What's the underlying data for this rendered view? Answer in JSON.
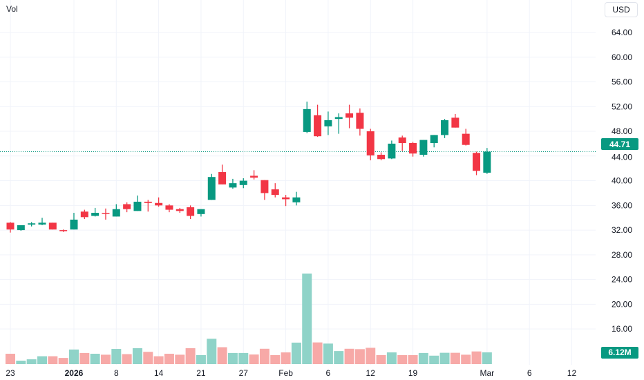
{
  "header": {
    "volume_label": "Vol",
    "currency_button": "USD"
  },
  "badges": {
    "last_price": "44.71",
    "last_volume": "6.12M"
  },
  "colors": {
    "up": "#089981",
    "down": "#f23645",
    "vol_up": "#8fd3c8",
    "vol_down": "#f7a9a7",
    "grid": "#f0f3fa",
    "text": "#131722"
  },
  "chart_data": {
    "type": "candlestick",
    "title": "",
    "currency": "USD",
    "last_price": 44.71,
    "ylim": [
      14,
      66
    ],
    "y_ticks": [
      "64.00",
      "60.00",
      "56.00",
      "52.00",
      "48.00",
      "44.00",
      "40.00",
      "36.00",
      "32.00",
      "28.00",
      "24.00",
      "20.00",
      "16.00"
    ],
    "x_ticks": [
      {
        "label": "23",
        "index": 1
      },
      {
        "label": "2026",
        "index": 7,
        "bold": true
      },
      {
        "label": "8",
        "index": 11
      },
      {
        "label": "14",
        "index": 15
      },
      {
        "label": "21",
        "index": 19
      },
      {
        "label": "27",
        "index": 23
      },
      {
        "label": "Feb",
        "index": 27
      },
      {
        "label": "6",
        "index": 31
      },
      {
        "label": "12",
        "index": 35
      },
      {
        "label": "19",
        "index": 39
      },
      {
        "label": "Mar",
        "index": 46
      },
      {
        "label": "6",
        "index": 50
      },
      {
        "label": "12",
        "index": 54
      }
    ],
    "volume_unit": "M",
    "candles": [
      {
        "o": 33.2,
        "h": 33.3,
        "l": 31.6,
        "c": 32.1,
        "v": 5.4
      },
      {
        "o": 32.0,
        "h": 32.8,
        "l": 31.9,
        "c": 32.8,
        "v": 1.8
      },
      {
        "o": 32.9,
        "h": 33.3,
        "l": 32.6,
        "c": 33.1,
        "v": 2.5
      },
      {
        "o": 32.9,
        "h": 34.0,
        "l": 32.8,
        "c": 33.2,
        "v": 4.1
      },
      {
        "o": 33.2,
        "h": 33.2,
        "l": 32.1,
        "c": 32.1,
        "v": 4.1
      },
      {
        "o": 32.0,
        "h": 32.1,
        "l": 31.7,
        "c": 31.9,
        "v": 3.2
      },
      {
        "o": 32.1,
        "h": 34.8,
        "l": 32.1,
        "c": 33.7,
        "v": 7.6
      },
      {
        "o": 35.0,
        "h": 35.3,
        "l": 33.8,
        "c": 34.1,
        "v": 5.8
      },
      {
        "o": 34.3,
        "h": 35.6,
        "l": 34.2,
        "c": 34.8,
        "v": 5.4
      },
      {
        "o": 34.8,
        "h": 35.5,
        "l": 33.7,
        "c": 34.7,
        "v": 4.9
      },
      {
        "o": 34.2,
        "h": 36.2,
        "l": 34.2,
        "c": 35.4,
        "v": 7.9
      },
      {
        "o": 36.2,
        "h": 36.5,
        "l": 34.9,
        "c": 35.4,
        "v": 5.2
      },
      {
        "o": 35.1,
        "h": 37.6,
        "l": 35.1,
        "c": 36.6,
        "v": 8.3
      },
      {
        "o": 36.6,
        "h": 36.9,
        "l": 35.0,
        "c": 36.4,
        "v": 6.4
      },
      {
        "o": 36.4,
        "h": 37.3,
        "l": 35.8,
        "c": 36.0,
        "v": 4.1
      },
      {
        "o": 36.0,
        "h": 36.2,
        "l": 34.9,
        "c": 35.3,
        "v": 5.4
      },
      {
        "o": 35.4,
        "h": 35.6,
        "l": 34.8,
        "c": 35.1,
        "v": 4.9
      },
      {
        "o": 35.7,
        "h": 36.0,
        "l": 33.8,
        "c": 34.3,
        "v": 8.3
      },
      {
        "o": 34.6,
        "h": 35.4,
        "l": 34.2,
        "c": 35.4,
        "v": 4.7
      },
      {
        "o": 36.9,
        "h": 41.1,
        "l": 36.9,
        "c": 40.6,
        "v": 13.2
      },
      {
        "o": 41.4,
        "h": 42.6,
        "l": 39.4,
        "c": 39.4,
        "v": 8.8
      },
      {
        "o": 38.9,
        "h": 40.3,
        "l": 38.7,
        "c": 39.6,
        "v": 5.8
      },
      {
        "o": 39.3,
        "h": 40.4,
        "l": 38.8,
        "c": 40.0,
        "v": 5.8
      },
      {
        "o": 40.8,
        "h": 41.7,
        "l": 40.2,
        "c": 40.5,
        "v": 5.0
      },
      {
        "o": 40.1,
        "h": 40.1,
        "l": 36.9,
        "c": 38.0,
        "v": 8.0
      },
      {
        "o": 38.6,
        "h": 39.6,
        "l": 37.3,
        "c": 37.7,
        "v": 4.7
      },
      {
        "o": 37.3,
        "h": 37.7,
        "l": 35.9,
        "c": 37.0,
        "v": 6.1
      },
      {
        "o": 36.5,
        "h": 38.2,
        "l": 36.0,
        "c": 37.3,
        "v": 11.2
      },
      {
        "o": 47.9,
        "h": 52.8,
        "l": 47.7,
        "c": 51.6,
        "v": 47.2
      },
      {
        "o": 50.6,
        "h": 52.3,
        "l": 47.1,
        "c": 47.2,
        "v": 11.3
      },
      {
        "o": 48.8,
        "h": 51.2,
        "l": 47.4,
        "c": 49.8,
        "v": 10.7
      },
      {
        "o": 50.0,
        "h": 50.9,
        "l": 47.6,
        "c": 50.3,
        "v": 6.8
      },
      {
        "o": 50.9,
        "h": 52.3,
        "l": 48.5,
        "c": 50.2,
        "v": 8.0
      },
      {
        "o": 51.0,
        "h": 51.7,
        "l": 47.3,
        "c": 48.4,
        "v": 7.8
      },
      {
        "o": 48.0,
        "h": 48.4,
        "l": 43.3,
        "c": 44.1,
        "v": 8.5
      },
      {
        "o": 44.2,
        "h": 44.6,
        "l": 43.3,
        "c": 43.5,
        "v": 4.7
      },
      {
        "o": 43.6,
        "h": 46.5,
        "l": 43.5,
        "c": 46.0,
        "v": 6.1
      },
      {
        "o": 47.0,
        "h": 47.3,
        "l": 44.8,
        "c": 46.1,
        "v": 4.7
      },
      {
        "o": 46.1,
        "h": 46.3,
        "l": 43.9,
        "c": 44.4,
        "v": 4.7
      },
      {
        "o": 44.2,
        "h": 46.6,
        "l": 43.9,
        "c": 46.6,
        "v": 5.8
      },
      {
        "o": 46.1,
        "h": 47.4,
        "l": 45.4,
        "c": 47.4,
        "v": 4.4
      },
      {
        "o": 47.4,
        "h": 50.0,
        "l": 46.9,
        "c": 49.8,
        "v": 5.9
      },
      {
        "o": 50.2,
        "h": 50.8,
        "l": 48.6,
        "c": 48.6,
        "v": 5.9
      },
      {
        "o": 47.6,
        "h": 48.4,
        "l": 45.7,
        "c": 45.8,
        "v": 4.9
      },
      {
        "o": 44.5,
        "h": 44.7,
        "l": 40.9,
        "c": 41.6,
        "v": 6.6
      },
      {
        "o": 41.3,
        "h": 45.3,
        "l": 41.1,
        "c": 44.71,
        "v": 6.12
      }
    ]
  }
}
